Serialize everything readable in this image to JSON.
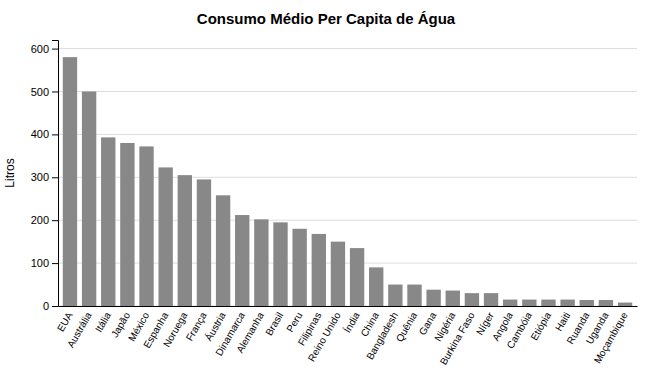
{
  "chart_data": {
    "type": "bar",
    "title": "Consumo Médio Per Capita de Água",
    "ylabel": "Litros",
    "categories": [
      "EUA",
      "Austrália",
      "Itália",
      "Japão",
      "México",
      "Espanha",
      "Noruega",
      "França",
      "Áustria",
      "Dinamarca",
      "Alemanha",
      "Brasil",
      "Peru",
      "Filipinas",
      "Reino Unido",
      "Índia",
      "China",
      "Bangladesh",
      "Quênia",
      "Gana",
      "Nigéria",
      "Burkina Faso",
      "Níger",
      "Angola",
      "Cambóia",
      "Etiópia",
      "Haiti",
      "Ruanda",
      "Uganda",
      "Moçambique"
    ],
    "values": [
      580,
      500,
      393,
      380,
      372,
      323,
      305,
      295,
      258,
      212,
      202,
      195,
      180,
      168,
      150,
      135,
      90,
      50,
      50,
      38,
      36,
      30,
      30,
      15,
      15,
      15,
      15,
      14,
      14,
      8
    ],
    "color": "#888888",
    "ylim": [
      0,
      620
    ],
    "yticks": [
      0,
      100,
      200,
      300,
      400,
      500,
      600
    ],
    "grid": true
  }
}
